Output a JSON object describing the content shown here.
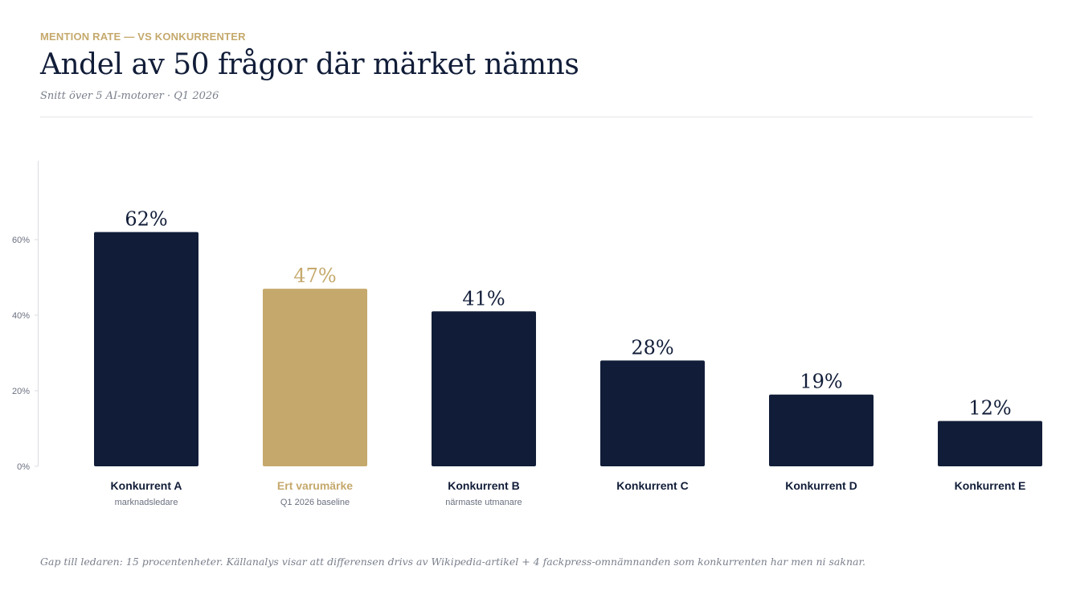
{
  "header": {
    "eyebrow": "MENTION RATE — VS KONKURRENTER",
    "title": "Andel av 50 frågor där märket nämns",
    "subtitle": "Snitt över 5 AI-motorer · Q1 2026"
  },
  "footer": {
    "note": "Gap till ledaren: 15 procentenheter. Källanalys visar att differensen drivs av Wikipedia-artikel + 4 fackpress-omnämnanden som konkurrenten har men ni saknar."
  },
  "colors": {
    "primary": "#111d38",
    "accent": "#c5a96c",
    "muted": "#6b7080",
    "axis": "#d8dbe2"
  },
  "chart_data": {
    "type": "bar",
    "title": "Andel av 50 frågor där märket nämns",
    "subtitle": "Snitt över 5 AI-motorer · Q1 2026",
    "xlabel": "",
    "ylabel": "",
    "ylim": [
      0,
      70
    ],
    "yticks": [
      0,
      20,
      40,
      60
    ],
    "ytick_labels": [
      "0%",
      "20%",
      "40%",
      "60%"
    ],
    "grid": false,
    "categories": [
      "Konkurrent A",
      "Ert varumärke",
      "Konkurrent B",
      "Konkurrent C",
      "Konkurrent D",
      "Konkurrent E"
    ],
    "sublabels": [
      "marknadsledare",
      "Q1 2026 baseline",
      "närmaste utmanare",
      "",
      "",
      ""
    ],
    "values": [
      62,
      47,
      41,
      28,
      19,
      12
    ],
    "value_labels": [
      "62%",
      "47%",
      "41%",
      "28%",
      "19%",
      "12%"
    ],
    "highlight_index": 1
  }
}
